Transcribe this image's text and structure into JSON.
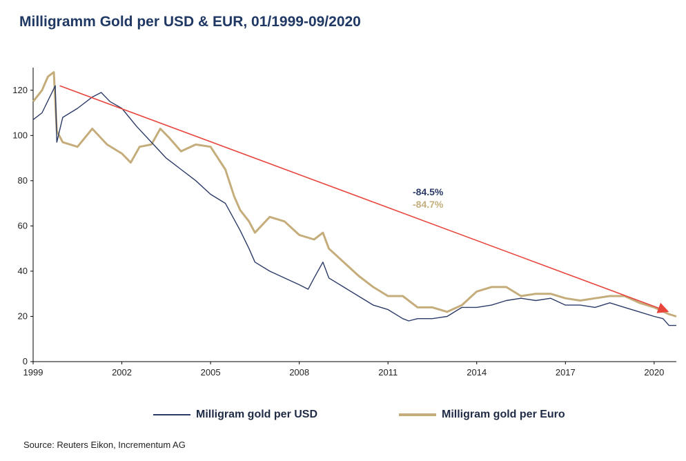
{
  "title": "Milligramm Gold per USD & EUR, 01/1999-09/2020",
  "source": "Source: Reuters Eikon, Incrementum AG",
  "colors": {
    "usd": "#2b3a67",
    "eur": "#c4ad7a",
    "trend": "#e8453c",
    "axis": "#000000"
  },
  "chart_data": {
    "type": "line",
    "xlabel": "",
    "ylabel": "",
    "xlim": [
      1999.0,
      2020.75
    ],
    "ylim": [
      0,
      130
    ],
    "x_ticks": [
      1999,
      2002,
      2005,
      2008,
      2011,
      2014,
      2017,
      2020
    ],
    "x_tick_labels": [
      "1999",
      "2002",
      "2005",
      "2008",
      "2011",
      "2014",
      "2017",
      "2020"
    ],
    "y_ticks": [
      0,
      20,
      40,
      60,
      80,
      100,
      120
    ],
    "y_tick_labels": [
      "0",
      "20",
      "40",
      "60",
      "80",
      "100",
      "120"
    ],
    "legend_position": "bottom",
    "series": [
      {
        "name": "Milligram gold per USD",
        "x": [
          1999.0,
          1999.3,
          1999.6,
          1999.75,
          1999.8,
          2000.0,
          2000.5,
          2001.0,
          2001.3,
          2001.6,
          2002.0,
          2002.5,
          2003.0,
          2003.5,
          2004.0,
          2004.5,
          2005.0,
          2005.5,
          2006.0,
          2006.3,
          2006.5,
          2007.0,
          2007.5,
          2008.0,
          2008.3,
          2008.5,
          2008.8,
          2009.0,
          2009.5,
          2010.0,
          2010.5,
          2011.0,
          2011.5,
          2011.7,
          2012.0,
          2012.5,
          2013.0,
          2013.5,
          2014.0,
          2014.5,
          2015.0,
          2015.5,
          2016.0,
          2016.5,
          2017.0,
          2017.5,
          2018.0,
          2018.5,
          2019.0,
          2019.5,
          2020.0,
          2020.3,
          2020.5,
          2020.75
        ],
        "values": [
          107,
          110,
          118,
          122,
          97,
          108,
          112,
          117,
          119,
          115,
          112,
          104,
          97,
          90,
          85,
          80,
          74,
          70,
          58,
          50,
          44,
          40,
          37,
          34,
          32,
          37,
          44,
          37,
          33,
          29,
          25,
          23,
          19,
          18,
          19,
          19,
          20,
          24,
          24,
          25,
          27,
          28,
          27,
          28,
          25,
          25,
          24,
          26,
          24,
          22,
          20,
          19,
          16,
          16
        ]
      },
      {
        "name": "Milligram gold per Euro",
        "x": [
          1999.0,
          1999.3,
          1999.5,
          1999.7,
          1999.8,
          2000.0,
          2000.5,
          2001.0,
          2001.5,
          2002.0,
          2002.3,
          2002.6,
          2003.0,
          2003.3,
          2003.6,
          2004.0,
          2004.5,
          2005.0,
          2005.5,
          2005.8,
          2006.0,
          2006.3,
          2006.5,
          2007.0,
          2007.5,
          2008.0,
          2008.5,
          2008.8,
          2009.0,
          2009.5,
          2010.0,
          2010.5,
          2011.0,
          2011.5,
          2012.0,
          2012.5,
          2013.0,
          2013.5,
          2014.0,
          2014.5,
          2015.0,
          2015.5,
          2016.0,
          2016.5,
          2017.0,
          2017.5,
          2018.0,
          2018.5,
          2019.0,
          2019.5,
          2020.0,
          2020.5,
          2020.75
        ],
        "values": [
          115,
          120,
          126,
          128,
          102,
          97,
          95,
          103,
          96,
          92,
          88,
          95,
          96,
          103,
          99,
          93,
          96,
          95,
          85,
          73,
          67,
          62,
          57,
          64,
          62,
          56,
          54,
          57,
          50,
          44,
          38,
          33,
          29,
          29,
          24,
          24,
          22,
          25,
          31,
          33,
          33,
          29,
          30,
          30,
          28,
          27,
          28,
          29,
          29,
          26,
          24,
          21,
          20
        ]
      }
    ],
    "trendline": {
      "x": [
        1999.9,
        2020.5
      ],
      "y": [
        122,
        22
      ]
    },
    "annotations": [
      "-84.5%",
      "-84.7%"
    ]
  }
}
